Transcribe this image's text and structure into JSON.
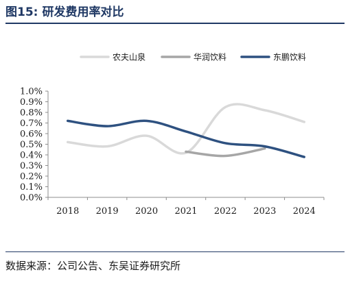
{
  "header": {
    "figure_number": "图15:",
    "title": "研发费用率对比"
  },
  "footer": {
    "source": "数据来源：公司公告、东吴证券研究所"
  },
  "colors": {
    "title": "#1f3864",
    "rule": "#1f3864"
  },
  "chart_data": {
    "type": "line",
    "title": "研发费用率对比",
    "xlabel": "",
    "ylabel": "",
    "categories": [
      "2018",
      "2019",
      "2020",
      "2021",
      "2022",
      "2023",
      "2024"
    ],
    "yticks": [
      "0.0%",
      "0.1%",
      "0.2%",
      "0.3%",
      "0.4%",
      "0.5%",
      "0.6%",
      "0.7%",
      "0.8%",
      "0.9%",
      "1.0%"
    ],
    "ylim": [
      0,
      1.0
    ],
    "grid": false,
    "legend_position": "top",
    "series": [
      {
        "name": "农夫山泉",
        "color": "#d9d9d9",
        "values": [
          0.52,
          0.48,
          0.58,
          0.42,
          0.85,
          0.82,
          0.71
        ]
      },
      {
        "name": "华润饮料",
        "color": "#a6a6a6",
        "values": [
          null,
          null,
          null,
          0.43,
          0.39,
          0.46,
          null
        ]
      },
      {
        "name": "东鹏饮料",
        "color": "#2e5180",
        "values": [
          0.72,
          0.67,
          0.72,
          0.62,
          0.51,
          0.48,
          0.38
        ]
      }
    ]
  }
}
